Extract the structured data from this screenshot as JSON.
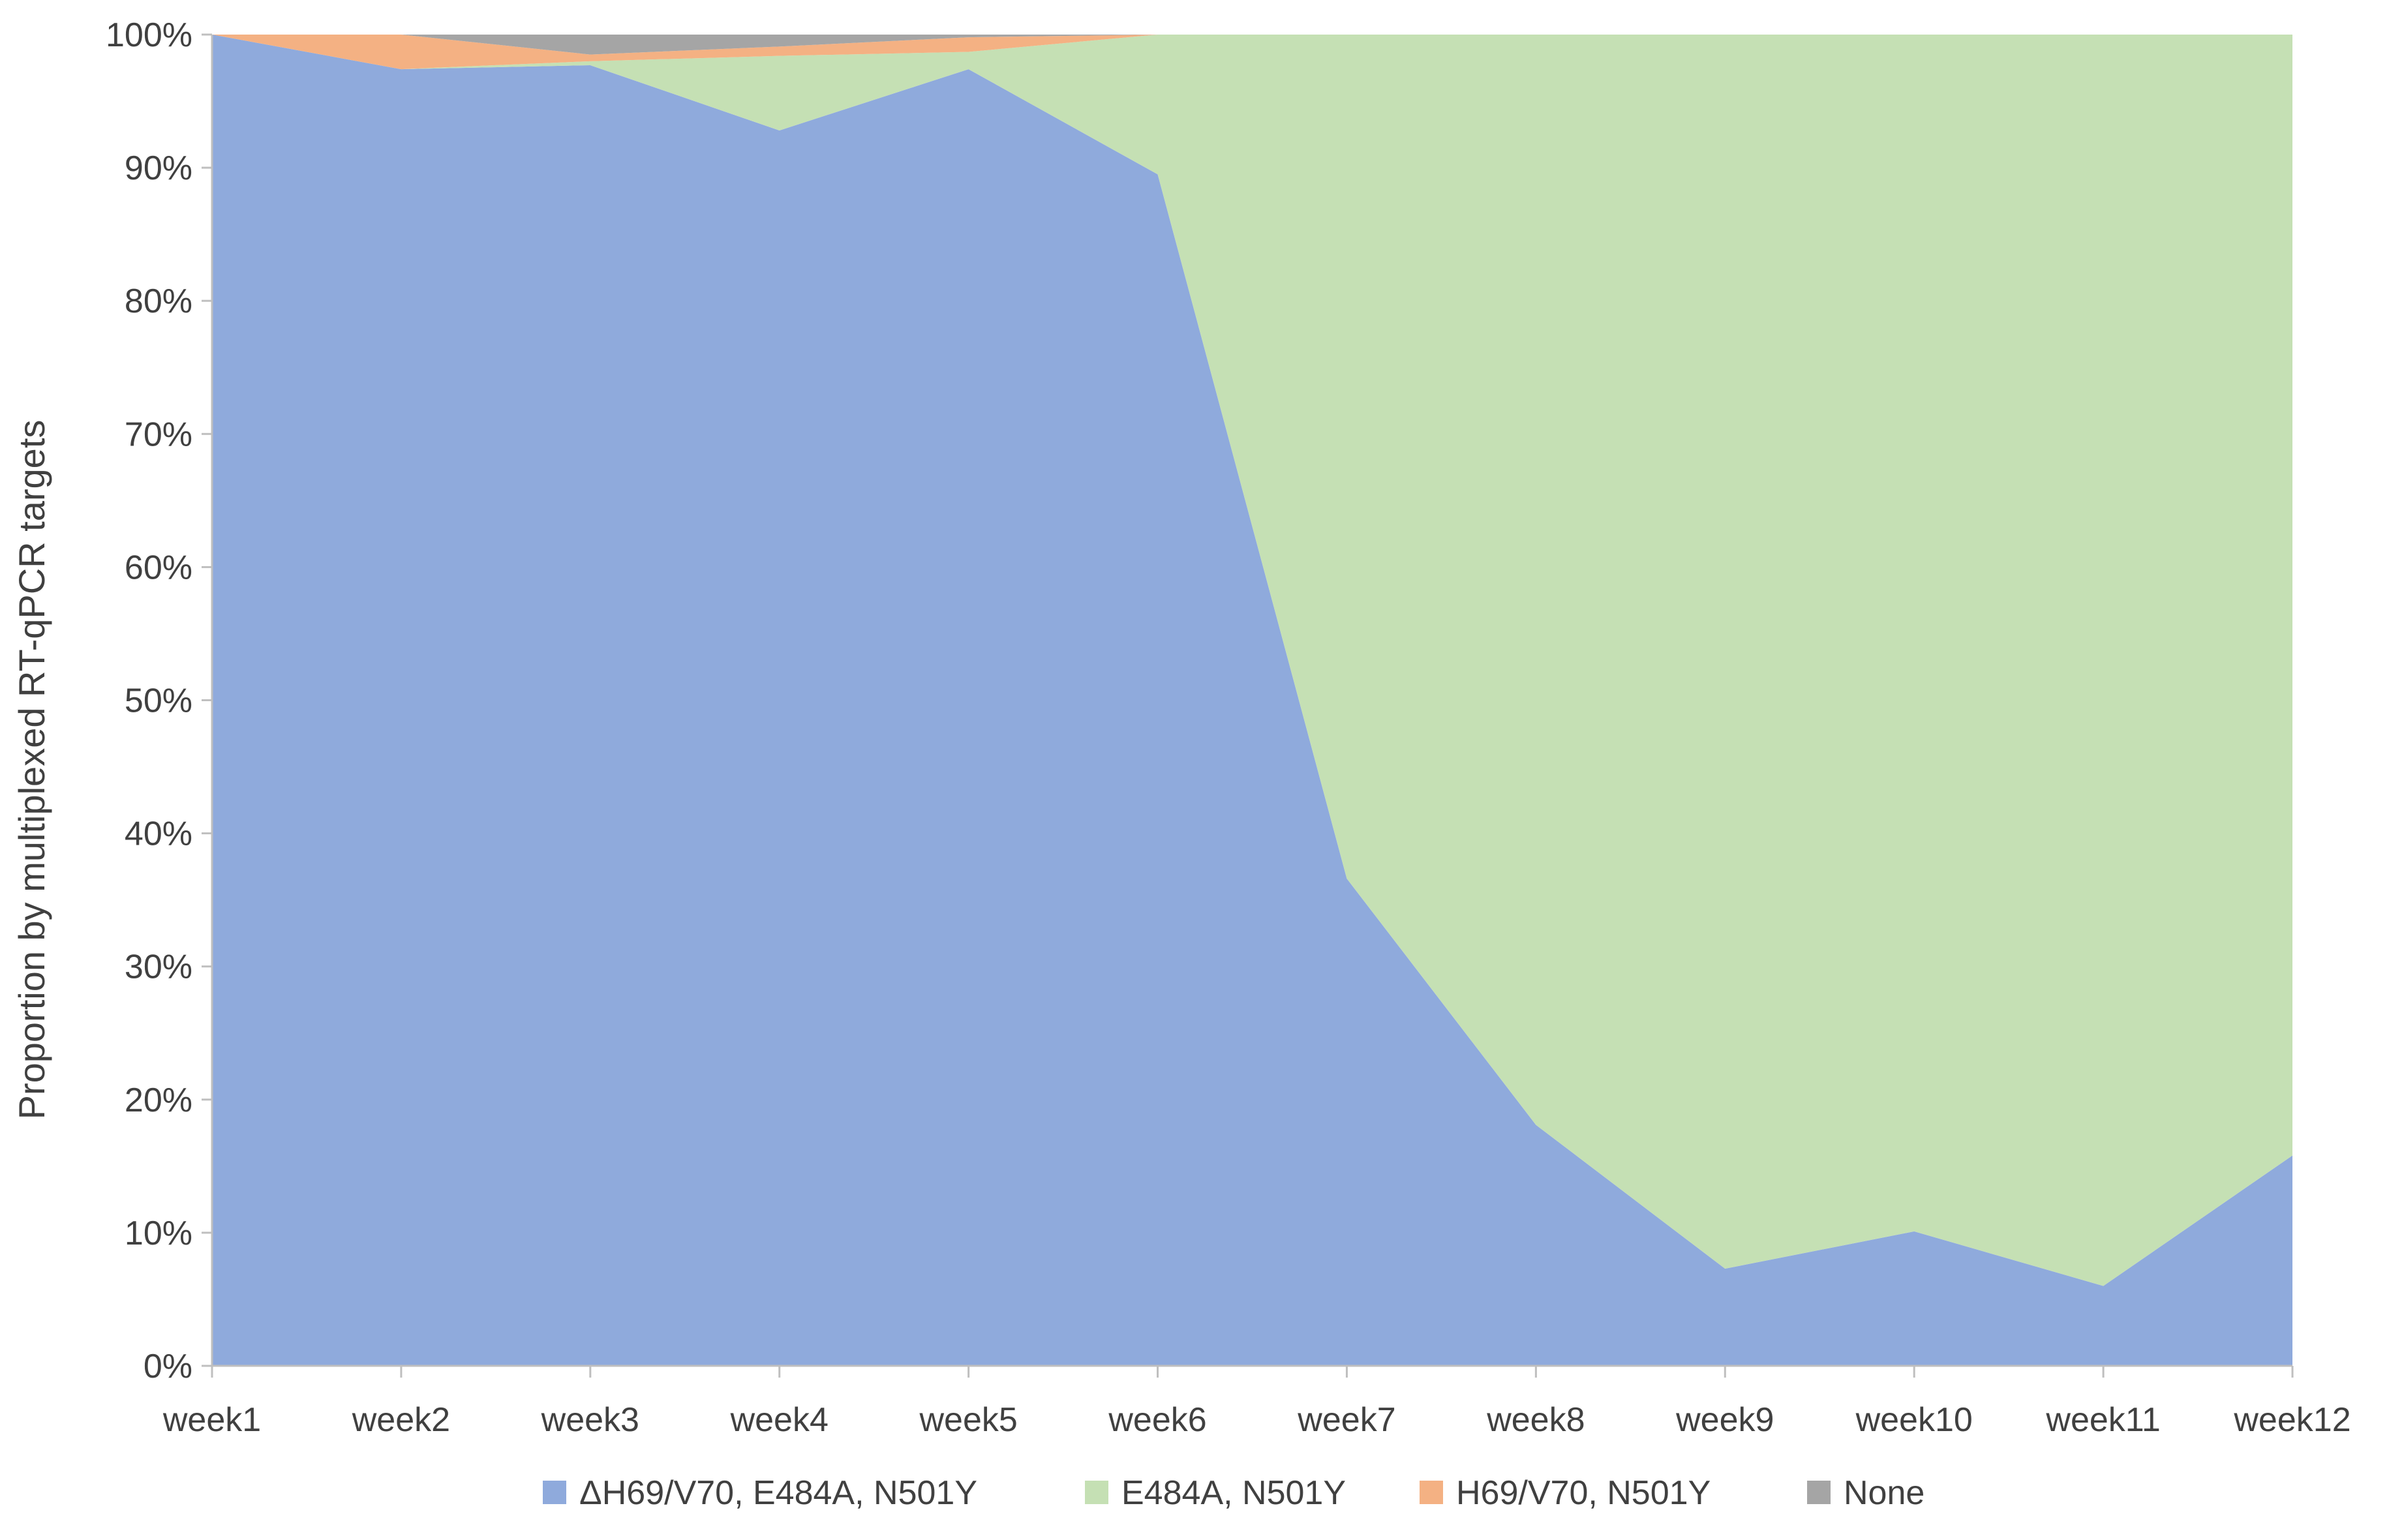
{
  "chart_data": {
    "type": "area",
    "stacked": "percent",
    "title": "",
    "xlabel": "",
    "ylabel": "Proportion by multiplexed RT-qPCR targets",
    "ylim": [
      0,
      100
    ],
    "yticks": [
      0,
      10,
      20,
      30,
      40,
      50,
      60,
      70,
      80,
      90,
      100
    ],
    "ytick_labels": [
      "0%",
      "10%",
      "20%",
      "30%",
      "40%",
      "50%",
      "60%",
      "70%",
      "80%",
      "90%",
      "100%"
    ],
    "categories": [
      "week1",
      "week2",
      "week3",
      "week4",
      "week5",
      "week6",
      "week7",
      "week8",
      "week9",
      "week10",
      "week11",
      "week12"
    ],
    "legend_position": "bottom",
    "grid": false,
    "series": [
      {
        "name": "ΔH69/V70, E484A, N501Y",
        "color": "#8faadc",
        "values": [
          100,
          97.4,
          97.7,
          92.8,
          97.4,
          89.5,
          36.6,
          18.1,
          7.3,
          10.1,
          6.0,
          15.8
        ]
      },
      {
        "name": "E484A, N501Y",
        "color": "#c5e0b4",
        "values": [
          0,
          0,
          0.3,
          5.6,
          1.3,
          10.5,
          63.4,
          81.9,
          92.7,
          89.9,
          94.0,
          84.2
        ]
      },
      {
        "name": "H69/V70, N501Y",
        "color": "#f4b183",
        "values": [
          0,
          2.6,
          0.5,
          0.7,
          1.1,
          0,
          0,
          0,
          0,
          0,
          0,
          0
        ]
      },
      {
        "name": "None",
        "color": "#a5a5a5",
        "values": [
          0,
          0,
          1.5,
          0.9,
          0.2,
          0,
          0,
          0,
          0,
          0,
          0,
          0
        ]
      }
    ]
  }
}
